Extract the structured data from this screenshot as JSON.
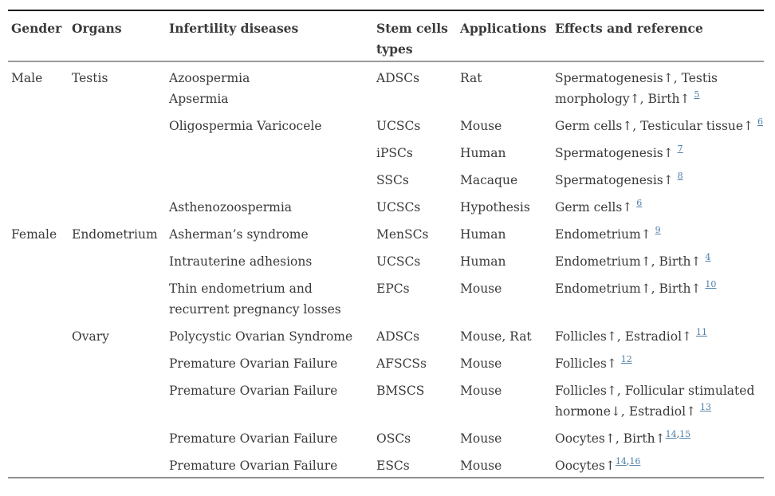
{
  "colors": {
    "text": "#3a3a3a",
    "link": "#4d7ea8",
    "rule_top": "#1c1c1c",
    "rule_header": "#9a9a9a",
    "rule_bottom": "#8f8f8f"
  },
  "table": {
    "columns": [
      {
        "id": "gender",
        "lines": [
          "Gender"
        ]
      },
      {
        "id": "organs",
        "lines": [
          "Organs"
        ]
      },
      {
        "id": "diseases",
        "lines": [
          "Infertility diseases"
        ]
      },
      {
        "id": "stem_cells",
        "lines": [
          "Stem cells",
          "types"
        ]
      },
      {
        "id": "applications",
        "lines": [
          "Applications"
        ]
      },
      {
        "id": "effects",
        "lines": [
          "Effects and reference"
        ]
      }
    ],
    "rows": [
      {
        "gender": "Male",
        "organs": "Testis",
        "diseases": [
          "Azoospermia",
          "Apsermia"
        ],
        "stem_cells": "ADSCs",
        "applications": "Rat",
        "effects": [
          "Spermatogenesis↑, Testis",
          "morphology↑, Birth↑ [5]"
        ]
      },
      {
        "gender": "",
        "organs": "",
        "diseases": [
          "Oligospermia Varicocele"
        ],
        "stem_cells": "UCSCs",
        "applications": "Mouse",
        "effects": [
          "Germ cells↑, Testicular tissue↑ [6]"
        ]
      },
      {
        "gender": "",
        "organs": "",
        "diseases": [],
        "stem_cells": "iPSCs",
        "applications": "Human",
        "effects": [
          "Spermatogenesis↑ [7]"
        ]
      },
      {
        "gender": "",
        "organs": "",
        "diseases": [],
        "stem_cells": "SSCs",
        "applications": "Macaque",
        "effects": [
          "Spermatogenesis↑ [8]"
        ]
      },
      {
        "gender": "",
        "organs": "",
        "diseases": [
          "Asthenozoospermia"
        ],
        "stem_cells": "UCSCs",
        "applications": "Hypothesis",
        "effects": [
          "Germ cells↑ [6]"
        ]
      },
      {
        "gender": "Female",
        "organs": "Endometrium",
        "diseases": [
          "Asherman’s syndrome"
        ],
        "stem_cells": "MenSCs",
        "applications": "Human",
        "effects": [
          "Endometrium↑ [9]"
        ]
      },
      {
        "gender": "",
        "organs": "",
        "diseases": [
          "Intrauterine adhesions"
        ],
        "stem_cells": "UCSCs",
        "applications": "Human",
        "effects": [
          "Endometrium↑, Birth↑ [4]"
        ]
      },
      {
        "gender": "",
        "organs": "",
        "diseases": [
          "Thin endometrium and",
          "recurrent pregnancy losses"
        ],
        "stem_cells": "EPCs",
        "applications": "Mouse",
        "effects": [
          "Endometrium↑, Birth↑ [10]"
        ]
      },
      {
        "gender": "",
        "organs": "Ovary",
        "diseases": [
          "Polycystic Ovarian Syndrome"
        ],
        "stem_cells": "ADSCs",
        "applications": "Mouse, Rat",
        "effects": [
          "Follicles↑, Estradiol↑ [11]"
        ]
      },
      {
        "gender": "",
        "organs": "",
        "diseases": [
          "Premature Ovarian Failure"
        ],
        "stem_cells": "AFSCSs",
        "applications": "Mouse",
        "effects": [
          "Follicles↑ [12]"
        ]
      },
      {
        "gender": "",
        "organs": "",
        "diseases": [
          "Premature Ovarian Failure"
        ],
        "stem_cells": "BMSCS",
        "applications": "Mouse",
        "effects": [
          "Follicles↑, Follicular stimulated",
          "hormone↓, Estradiol↑ [13]"
        ]
      },
      {
        "gender": "",
        "organs": "",
        "diseases": [
          "Premature Ovarian Failure"
        ],
        "stem_cells": "OSCs",
        "applications": "Mouse",
        "effects": [
          "Oocytes↑, Birth↑[14,15]"
        ]
      },
      {
        "gender": "",
        "organs": "",
        "diseases": [
          "Premature Ovarian Failure"
        ],
        "stem_cells": "ESCs",
        "applications": "Mouse",
        "effects": [
          "Oocytes↑[14,16]"
        ]
      }
    ]
  }
}
